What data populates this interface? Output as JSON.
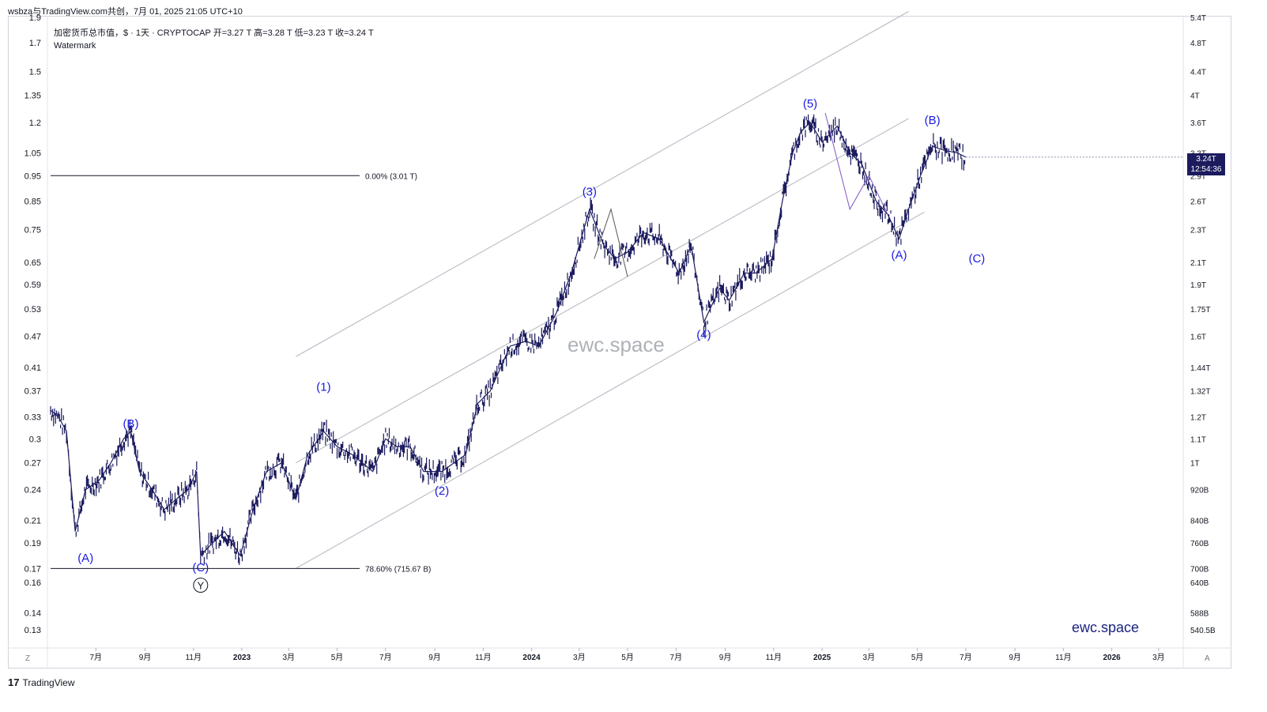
{
  "topbar": {
    "text": "wsbza与TradingView.com共创，7月 01, 2025 21:05 UTC+10"
  },
  "legend": {
    "symbol_line": "加密货币总市值，$ · 1天 · CRYPTOCAP  开=3.27 T  高=3.28 T  低=3.23 T  收=3.24 T",
    "watermark_label": "Watermark"
  },
  "price_tag": {
    "value": "3.24T",
    "countdown": "12:54:36"
  },
  "watermark_center": "ewc.space",
  "brand_bottom_right": "ewc.space",
  "footer": {
    "logo": "17",
    "name": "TradingView"
  },
  "corner": {
    "left": "Z",
    "right": "A"
  },
  "colors": {
    "price_line": "#1c1b5e",
    "wave_label": "#1a1adf",
    "channel": "#b2b5be",
    "fib_line": "#131722",
    "triangle": "#7e57c2"
  },
  "chart_data": {
    "type": "line",
    "symbol": "CRYPTOCAP",
    "y_scale": "log",
    "ylim_left": [
      0.12,
      1.9
    ],
    "left_axis_ticks": [
      "1.9",
      "1.7",
      "1.5",
      "1.35",
      "1.2",
      "1.05",
      "0.95",
      "0.85",
      "0.75",
      "0.65",
      "0.59",
      "0.53",
      "0.47",
      "0.41",
      "0.37",
      "0.33",
      "0.3",
      "0.27",
      "0.24",
      "0.21",
      "0.19",
      "0.17",
      "0.16",
      "0.14",
      "0.13"
    ],
    "right_axis_ticks": [
      "5.4T",
      "4.8T",
      "4.4T",
      "4T",
      "3.6T",
      "3.3T",
      "2.9T",
      "2.6T",
      "2.3T",
      "2.1T",
      "1.9T",
      "1.75T",
      "1.6T",
      "1.44T",
      "1.32T",
      "1.2T",
      "1.1T",
      "1T",
      "920B",
      "840B",
      "760B",
      "700B",
      "640B",
      "588B",
      "540.5B"
    ],
    "x_axis_ticks": [
      "7月",
      "9月",
      "11月",
      "2023",
      "3月",
      "5月",
      "7月",
      "9月",
      "11月",
      "2024",
      "3月",
      "5月",
      "7月",
      "9月",
      "11月",
      "2025",
      "3月",
      "5月",
      "7月",
      "9月",
      "11月",
      "2026",
      "3月"
    ],
    "ohlc_last": {
      "open": "3.27T",
      "high": "3.28T",
      "low": "3.23T",
      "close": "3.24T"
    },
    "series": [
      {
        "x": [
          "2022-05-05",
          "2022-05-15",
          "2022-05-25",
          "2022-06-05",
          "2022-06-18",
          "2022-07-05",
          "2022-07-20",
          "2022-08-05",
          "2022-08-14",
          "2022-08-25",
          "2022-09-10",
          "2022-09-25",
          "2022-10-10",
          "2022-10-25",
          "2022-11-05",
          "2022-11-10",
          "2022-11-25",
          "2022-12-10",
          "2022-12-30",
          "2023-01-15",
          "2023-02-01",
          "2023-02-20",
          "2023-03-10",
          "2023-03-25",
          "2023-04-14",
          "2023-05-01",
          "2023-05-20",
          "2023-06-15",
          "2023-07-01",
          "2023-07-15",
          "2023-08-01",
          "2023-08-18",
          "2023-09-10",
          "2023-10-10",
          "2023-10-25",
          "2023-11-10",
          "2023-12-05",
          "2023-12-25",
          "2024-01-10",
          "2024-02-01",
          "2024-02-20",
          "2024-03-14",
          "2024-04-01",
          "2024-04-15",
          "2024-05-01",
          "2024-05-21",
          "2024-06-10",
          "2024-07-05",
          "2024-07-20",
          "2024-08-05",
          "2024-08-25",
          "2024-09-06",
          "2024-09-25",
          "2024-10-10",
          "2024-10-30",
          "2024-11-12",
          "2024-11-25",
          "2024-12-05",
          "2024-12-17",
          "2025-01-01",
          "2025-01-20",
          "2025-02-05",
          "2025-02-20",
          "2025-03-10",
          "2025-03-25",
          "2025-04-08",
          "2025-04-20",
          "2025-05-05",
          "2025-05-20",
          "2025-06-05",
          "2025-06-20",
          "2025-07-01"
        ],
        "y": [
          0.34,
          0.33,
          0.31,
          0.2,
          0.24,
          0.25,
          0.27,
          0.3,
          0.31,
          0.26,
          0.24,
          0.22,
          0.23,
          0.24,
          0.26,
          0.18,
          0.19,
          0.2,
          0.18,
          0.22,
          0.26,
          0.27,
          0.23,
          0.28,
          0.31,
          0.29,
          0.28,
          0.26,
          0.3,
          0.29,
          0.29,
          0.26,
          0.26,
          0.28,
          0.35,
          0.37,
          0.45,
          0.46,
          0.45,
          0.52,
          0.62,
          0.82,
          0.7,
          0.66,
          0.68,
          0.74,
          0.72,
          0.62,
          0.7,
          0.5,
          0.58,
          0.55,
          0.62,
          0.62,
          0.66,
          0.85,
          1.05,
          1.15,
          1.2,
          1.1,
          1.18,
          1.05,
          1.0,
          0.85,
          0.8,
          0.72,
          0.82,
          0.95,
          1.08,
          1.06,
          1.05,
          1.03
        ]
      }
    ],
    "wave_labels": [
      {
        "text": "(A)",
        "x": "2022-06-18",
        "y": 0.175
      },
      {
        "text": "(B)",
        "x": "2022-08-14",
        "y": 0.315
      },
      {
        "text": "(C)",
        "x": "2022-11-10",
        "y": 0.168
      },
      {
        "text": "Y",
        "x": "2022-11-10",
        "y": 0.158
      },
      {
        "text": "(1)",
        "x": "2023-04-14",
        "y": 0.37
      },
      {
        "text": "(2)",
        "x": "2023-09-10",
        "y": 0.235
      },
      {
        "text": "(3)",
        "x": "2024-03-14",
        "y": 0.87
      },
      {
        "text": "(4)",
        "x": "2024-08-05",
        "y": 0.465
      },
      {
        "text": "(5)",
        "x": "2024-12-17",
        "y": 1.28
      },
      {
        "text": "(A)",
        "x": "2025-04-08",
        "y": 0.66
      },
      {
        "text": "(B)",
        "x": "2025-05-20",
        "y": 1.19
      },
      {
        "text": "(C)",
        "x": "2025-07-15",
        "y": 0.65
      }
    ],
    "fib_levels": [
      {
        "label": "0.00% (3.01 T)",
        "y": 0.95,
        "x_start": "2022-05-05",
        "x_end": "2023-05-01"
      },
      {
        "label": "78.60% (715.67 B)",
        "y": 0.17,
        "x_start": "2022-05-05",
        "x_end": "2023-05-01"
      }
    ],
    "channel_lines": [
      {
        "x": [
          "2023-03-10",
          "2025-04-20"
        ],
        "y": [
          0.43,
          1.95
        ]
      },
      {
        "x": [
          "2023-03-10",
          "2025-04-20"
        ],
        "y": [
          0.27,
          1.22
        ]
      },
      {
        "x": [
          "2023-03-10",
          "2025-05-10"
        ],
        "y": [
          0.17,
          0.81
        ]
      }
    ]
  }
}
